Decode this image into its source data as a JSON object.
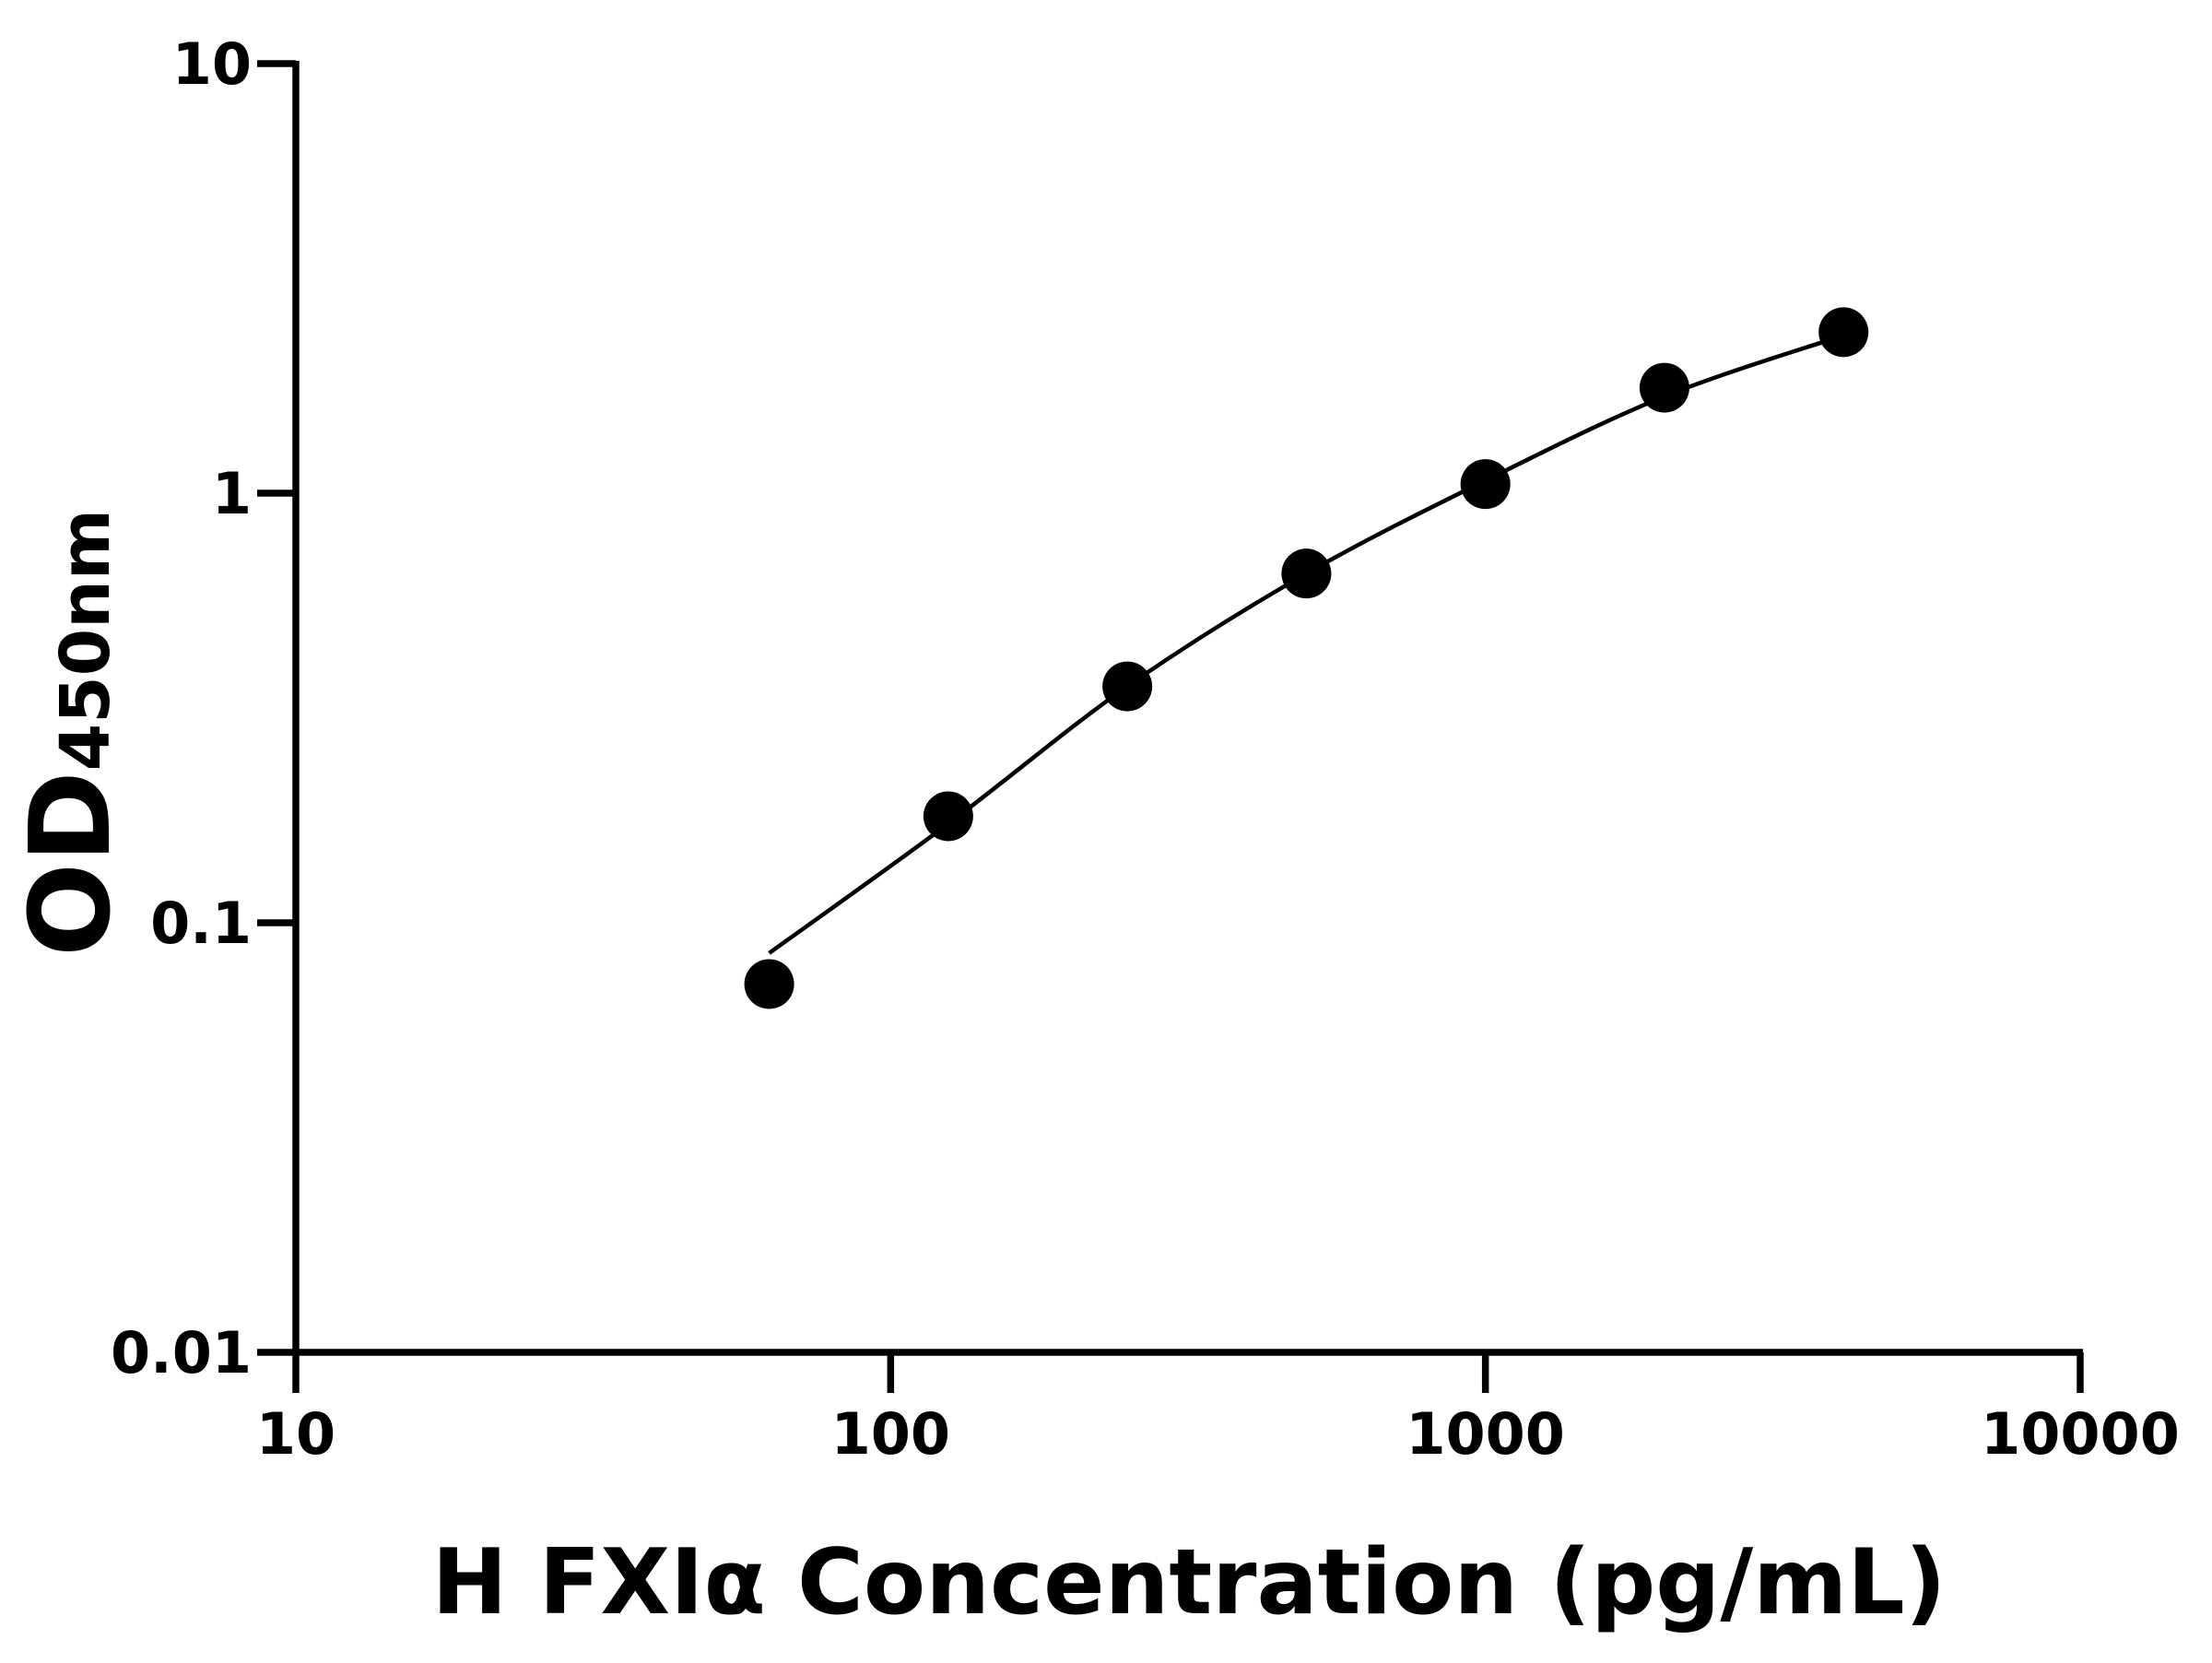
{
  "chart_data": {
    "type": "scatter",
    "x_label": "H FXIα Concentration (pg/mL)",
    "y_label": {
      "main": "OD",
      "sub": "450nm"
    },
    "x_log": true,
    "y_log": true,
    "xlim": [
      10,
      10000
    ],
    "ylim": [
      0.01,
      10
    ],
    "xticks": [
      10,
      100,
      1000,
      10000
    ],
    "yticks": [
      0.01,
      0.1,
      1,
      10
    ],
    "grid": false,
    "series": [
      {
        "color": "#000000",
        "x": [
          62.5,
          125,
          250,
          500,
          1000,
          2000,
          4000
        ],
        "values": [
          0.072,
          0.177,
          0.355,
          0.65,
          1.05,
          1.76,
          2.37
        ]
      }
    ],
    "fit": {
      "color": "#000000",
      "x": [
        62.5,
        125,
        250,
        500,
        1000,
        2000,
        4000
      ],
      "values": [
        0.085,
        0.17,
        0.355,
        0.65,
        1.07,
        1.68,
        2.33
      ]
    }
  }
}
